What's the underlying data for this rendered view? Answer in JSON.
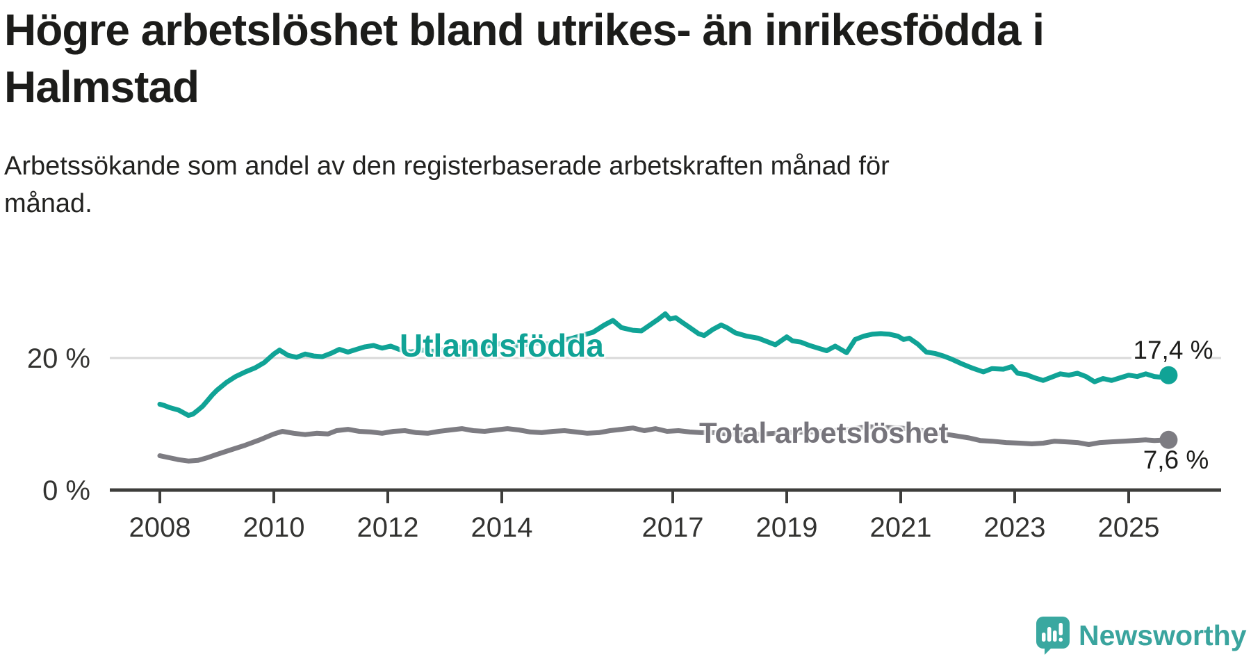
{
  "title": {
    "line1": "Högre arbetslöshet bland utrikes- än inrikesfödda i",
    "line2": "Halmstad"
  },
  "subtitle": {
    "line1": "Arbetssökande som andel av den registerbaserade arbetskraften månad för",
    "line2": "månad."
  },
  "branding": {
    "logo_text": "Newsworthy",
    "logo_color": "#3aa8a0"
  },
  "chart_data": {
    "type": "line",
    "title": "Högre arbetslöshet bland utrikes- än inrikesfödda i Halmstad",
    "subtitle": "Arbetssökande som andel av den registerbaserade arbetskraften månad för månad.",
    "xlabel": "",
    "ylabel": "",
    "x_range": [
      2007.1,
      2026.6
    ],
    "ylim": [
      0,
      29
    ],
    "grid": "single-horizontal-gridline-at-20",
    "legend_position": "inline-labels-on-lines",
    "x_axis": {
      "ticks": [
        {
          "year": 2008,
          "label": "2008"
        },
        {
          "year": 2010,
          "label": "2010"
        },
        {
          "year": 2012,
          "label": "2012"
        },
        {
          "year": 2014,
          "label": "2014"
        },
        {
          "year": 2017,
          "label": "2017"
        },
        {
          "year": 2019,
          "label": "2019"
        },
        {
          "year": 2021,
          "label": "2021"
        },
        {
          "year": 2023,
          "label": "2023"
        },
        {
          "year": 2025,
          "label": "2025"
        }
      ]
    },
    "y_axis": {
      "ticks": [
        {
          "value": 0,
          "label": "0 %"
        },
        {
          "value": 20,
          "label": "20 %"
        }
      ]
    },
    "series": [
      {
        "name": "Utlandsfödda",
        "color": "#10a396",
        "end_label": "17,4 %",
        "end_value": 17.4,
        "points": [
          [
            2008.0,
            13.0
          ],
          [
            2008.08,
            12.8
          ],
          [
            2008.17,
            12.5
          ],
          [
            2008.25,
            12.3
          ],
          [
            2008.33,
            12.1
          ],
          [
            2008.42,
            11.7
          ],
          [
            2008.5,
            11.3
          ],
          [
            2008.58,
            11.5
          ],
          [
            2008.67,
            12.1
          ],
          [
            2008.75,
            12.7
          ],
          [
            2008.83,
            13.5
          ],
          [
            2008.92,
            14.4
          ],
          [
            2009.0,
            15.1
          ],
          [
            2009.17,
            16.3
          ],
          [
            2009.33,
            17.2
          ],
          [
            2009.5,
            17.9
          ],
          [
            2009.67,
            18.5
          ],
          [
            2009.83,
            19.3
          ],
          [
            2010.0,
            20.6
          ],
          [
            2010.1,
            21.2
          ],
          [
            2010.25,
            20.4
          ],
          [
            2010.4,
            20.1
          ],
          [
            2010.55,
            20.6
          ],
          [
            2010.7,
            20.3
          ],
          [
            2010.85,
            20.2
          ],
          [
            2011.0,
            20.7
          ],
          [
            2011.15,
            21.3
          ],
          [
            2011.3,
            20.9
          ],
          [
            2011.45,
            21.3
          ],
          [
            2011.6,
            21.7
          ],
          [
            2011.75,
            21.9
          ],
          [
            2011.9,
            21.5
          ],
          [
            2012.05,
            21.8
          ],
          [
            2012.2,
            21.3
          ],
          [
            2012.4,
            20.9
          ],
          [
            2012.6,
            21.2
          ],
          [
            2012.8,
            21.0
          ],
          [
            2013.0,
            21.3
          ],
          [
            2013.2,
            21.7
          ],
          [
            2013.4,
            21.4
          ],
          [
            2013.6,
            21.6
          ],
          [
            2013.8,
            21.9
          ],
          [
            2014.0,
            22.2
          ],
          [
            2014.2,
            21.8
          ],
          [
            2014.4,
            22.0
          ],
          [
            2014.6,
            22.3
          ],
          [
            2014.8,
            22.1
          ],
          [
            2015.0,
            22.6
          ],
          [
            2015.2,
            22.9
          ],
          [
            2015.4,
            23.4
          ],
          [
            2015.6,
            23.9
          ],
          [
            2015.8,
            25.0
          ],
          [
            2015.95,
            25.7
          ],
          [
            2016.1,
            24.6
          ],
          [
            2016.3,
            24.2
          ],
          [
            2016.45,
            24.1
          ],
          [
            2016.6,
            25.0
          ],
          [
            2016.75,
            25.9
          ],
          [
            2016.87,
            26.7
          ],
          [
            2016.95,
            25.9
          ],
          [
            2017.05,
            26.1
          ],
          [
            2017.15,
            25.5
          ],
          [
            2017.3,
            24.6
          ],
          [
            2017.45,
            23.7
          ],
          [
            2017.55,
            23.4
          ],
          [
            2017.7,
            24.3
          ],
          [
            2017.85,
            25.0
          ],
          [
            2017.95,
            24.6
          ],
          [
            2018.1,
            23.8
          ],
          [
            2018.3,
            23.3
          ],
          [
            2018.5,
            23.0
          ],
          [
            2018.65,
            22.5
          ],
          [
            2018.8,
            22.0
          ],
          [
            2019.0,
            23.2
          ],
          [
            2019.1,
            22.6
          ],
          [
            2019.25,
            22.4
          ],
          [
            2019.4,
            21.9
          ],
          [
            2019.55,
            21.5
          ],
          [
            2019.7,
            21.1
          ],
          [
            2019.85,
            21.8
          ],
          [
            2019.95,
            21.3
          ],
          [
            2020.05,
            20.8
          ],
          [
            2020.2,
            22.8
          ],
          [
            2020.35,
            23.3
          ],
          [
            2020.5,
            23.6
          ],
          [
            2020.65,
            23.7
          ],
          [
            2020.8,
            23.6
          ],
          [
            2020.95,
            23.3
          ],
          [
            2021.05,
            22.8
          ],
          [
            2021.15,
            23.0
          ],
          [
            2021.3,
            22.1
          ],
          [
            2021.45,
            20.9
          ],
          [
            2021.6,
            20.7
          ],
          [
            2021.75,
            20.3
          ],
          [
            2021.9,
            19.8
          ],
          [
            2022.05,
            19.2
          ],
          [
            2022.25,
            18.5
          ],
          [
            2022.45,
            17.9
          ],
          [
            2022.6,
            18.4
          ],
          [
            2022.8,
            18.3
          ],
          [
            2022.95,
            18.7
          ],
          [
            2023.05,
            17.7
          ],
          [
            2023.2,
            17.5
          ],
          [
            2023.35,
            17.0
          ],
          [
            2023.5,
            16.6
          ],
          [
            2023.65,
            17.1
          ],
          [
            2023.8,
            17.6
          ],
          [
            2023.95,
            17.4
          ],
          [
            2024.1,
            17.7
          ],
          [
            2024.25,
            17.2
          ],
          [
            2024.4,
            16.4
          ],
          [
            2024.55,
            16.9
          ],
          [
            2024.7,
            16.6
          ],
          [
            2024.85,
            17.0
          ],
          [
            2025.0,
            17.4
          ],
          [
            2025.15,
            17.2
          ],
          [
            2025.3,
            17.6
          ],
          [
            2025.45,
            17.2
          ],
          [
            2025.55,
            17.1
          ],
          [
            2025.7,
            17.4
          ]
        ]
      },
      {
        "name": "Total arbetslöshet",
        "color": "#7d7c82",
        "end_label": "7,6 %",
        "end_value": 7.6,
        "points": [
          [
            2008.0,
            5.2
          ],
          [
            2008.17,
            4.9
          ],
          [
            2008.33,
            4.6
          ],
          [
            2008.5,
            4.4
          ],
          [
            2008.67,
            4.5
          ],
          [
            2008.83,
            4.9
          ],
          [
            2009.0,
            5.4
          ],
          [
            2009.25,
            6.1
          ],
          [
            2009.5,
            6.8
          ],
          [
            2009.75,
            7.6
          ],
          [
            2010.0,
            8.5
          ],
          [
            2010.15,
            8.9
          ],
          [
            2010.35,
            8.6
          ],
          [
            2010.55,
            8.4
          ],
          [
            2010.75,
            8.6
          ],
          [
            2010.95,
            8.5
          ],
          [
            2011.1,
            9.0
          ],
          [
            2011.3,
            9.2
          ],
          [
            2011.5,
            8.9
          ],
          [
            2011.7,
            8.8
          ],
          [
            2011.9,
            8.6
          ],
          [
            2012.1,
            8.9
          ],
          [
            2012.3,
            9.0
          ],
          [
            2012.5,
            8.7
          ],
          [
            2012.7,
            8.6
          ],
          [
            2012.9,
            8.9
          ],
          [
            2013.1,
            9.1
          ],
          [
            2013.3,
            9.3
          ],
          [
            2013.5,
            9.0
          ],
          [
            2013.7,
            8.9
          ],
          [
            2013.9,
            9.1
          ],
          [
            2014.1,
            9.3
          ],
          [
            2014.3,
            9.1
          ],
          [
            2014.5,
            8.8
          ],
          [
            2014.7,
            8.7
          ],
          [
            2014.9,
            8.9
          ],
          [
            2015.1,
            9.0
          ],
          [
            2015.3,
            8.8
          ],
          [
            2015.5,
            8.6
          ],
          [
            2015.7,
            8.7
          ],
          [
            2015.9,
            9.0
          ],
          [
            2016.1,
            9.2
          ],
          [
            2016.3,
            9.4
          ],
          [
            2016.5,
            9.0
          ],
          [
            2016.7,
            9.3
          ],
          [
            2016.9,
            8.9
          ],
          [
            2017.1,
            9.0
          ],
          [
            2017.3,
            8.8
          ],
          [
            2017.5,
            8.7
          ],
          [
            2017.7,
            8.7
          ],
          [
            2018.0,
            8.5
          ],
          [
            2018.3,
            8.4
          ],
          [
            2018.6,
            8.5
          ],
          [
            2019.0,
            8.7
          ],
          [
            2019.4,
            8.8
          ],
          [
            2019.8,
            9.0
          ],
          [
            2020.1,
            9.2
          ],
          [
            2020.4,
            9.6
          ],
          [
            2020.7,
            9.5
          ],
          [
            2021.0,
            9.4
          ],
          [
            2021.3,
            9.1
          ],
          [
            2021.6,
            8.7
          ],
          [
            2021.9,
            8.3
          ],
          [
            2022.2,
            7.9
          ],
          [
            2022.4,
            7.5
          ],
          [
            2022.6,
            7.4
          ],
          [
            2022.85,
            7.2
          ],
          [
            2023.1,
            7.1
          ],
          [
            2023.3,
            7.0
          ],
          [
            2023.5,
            7.1
          ],
          [
            2023.7,
            7.4
          ],
          [
            2023.9,
            7.3
          ],
          [
            2024.1,
            7.2
          ],
          [
            2024.3,
            6.9
          ],
          [
            2024.5,
            7.2
          ],
          [
            2024.7,
            7.3
          ],
          [
            2024.9,
            7.4
          ],
          [
            2025.1,
            7.5
          ],
          [
            2025.3,
            7.6
          ],
          [
            2025.45,
            7.5
          ],
          [
            2025.7,
            7.6
          ]
        ]
      }
    ]
  }
}
